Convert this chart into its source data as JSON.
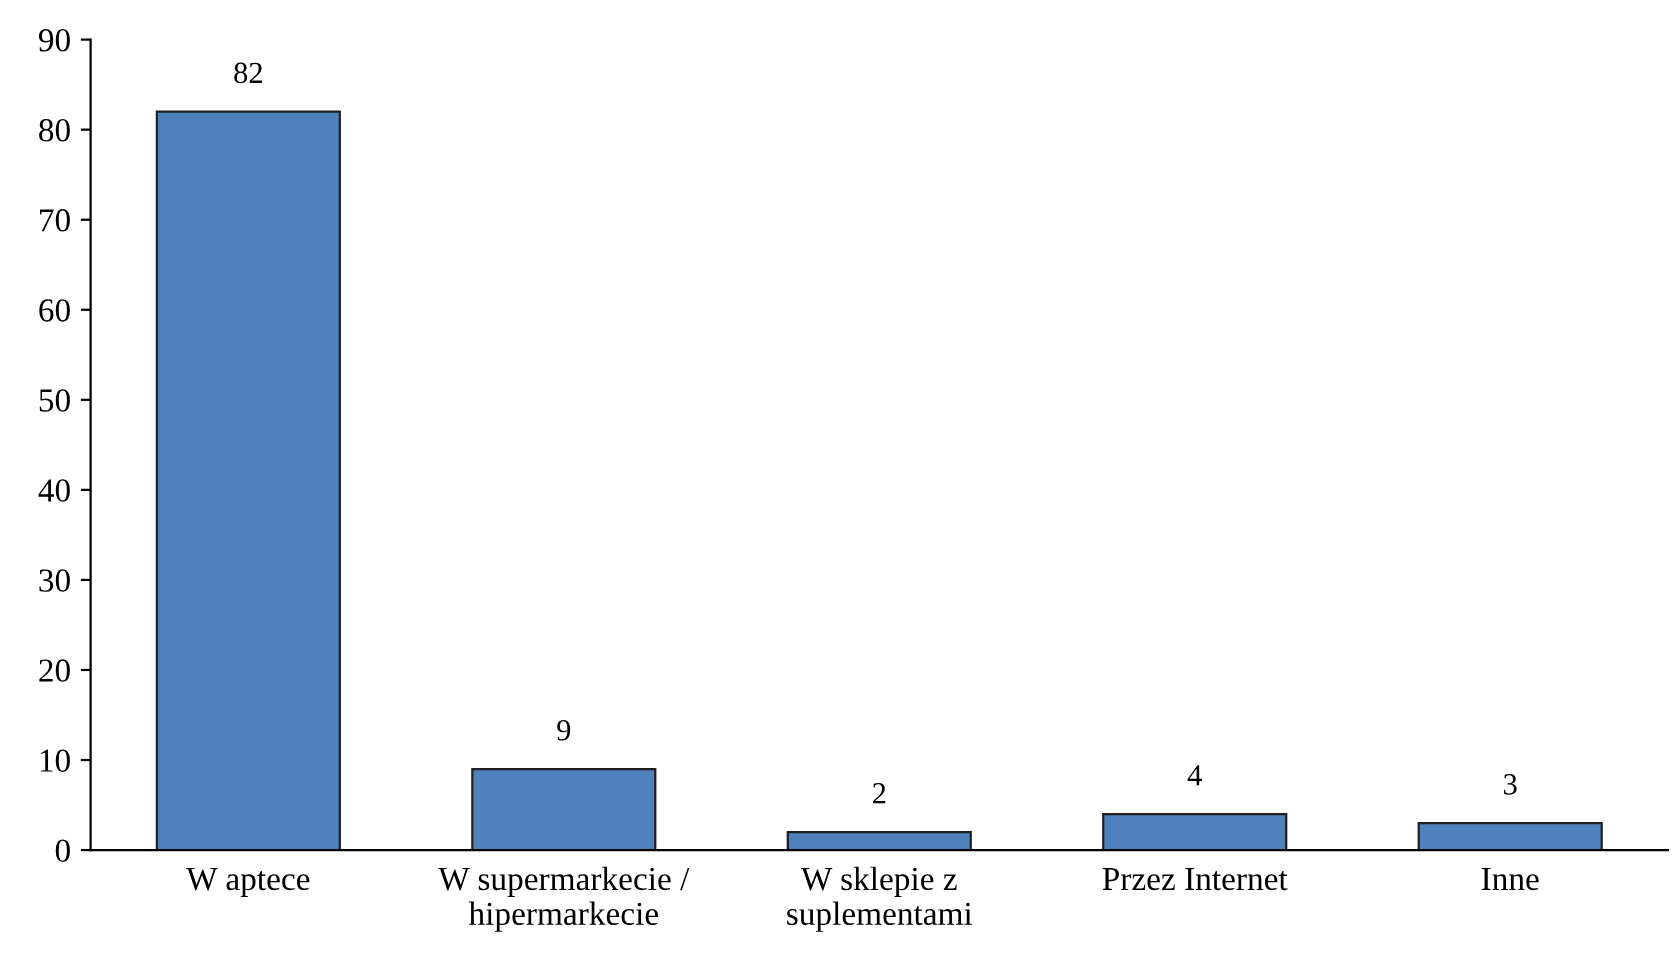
{
  "chart_data": {
    "type": "bar",
    "categories": [
      "W aptece",
      "W supermarkecie /\nhipermarkecie",
      "W sklepie z\nsuplementami",
      "Przez Internet",
      "Inne"
    ],
    "values": [
      82,
      9,
      2,
      4,
      3
    ],
    "color": "#4f81bd",
    "ylim": [
      0,
      90
    ],
    "yticks": [
      0,
      10,
      20,
      30,
      40,
      50,
      60,
      70,
      80,
      90
    ],
    "grid": false,
    "legend": false,
    "data_labels": true
  }
}
